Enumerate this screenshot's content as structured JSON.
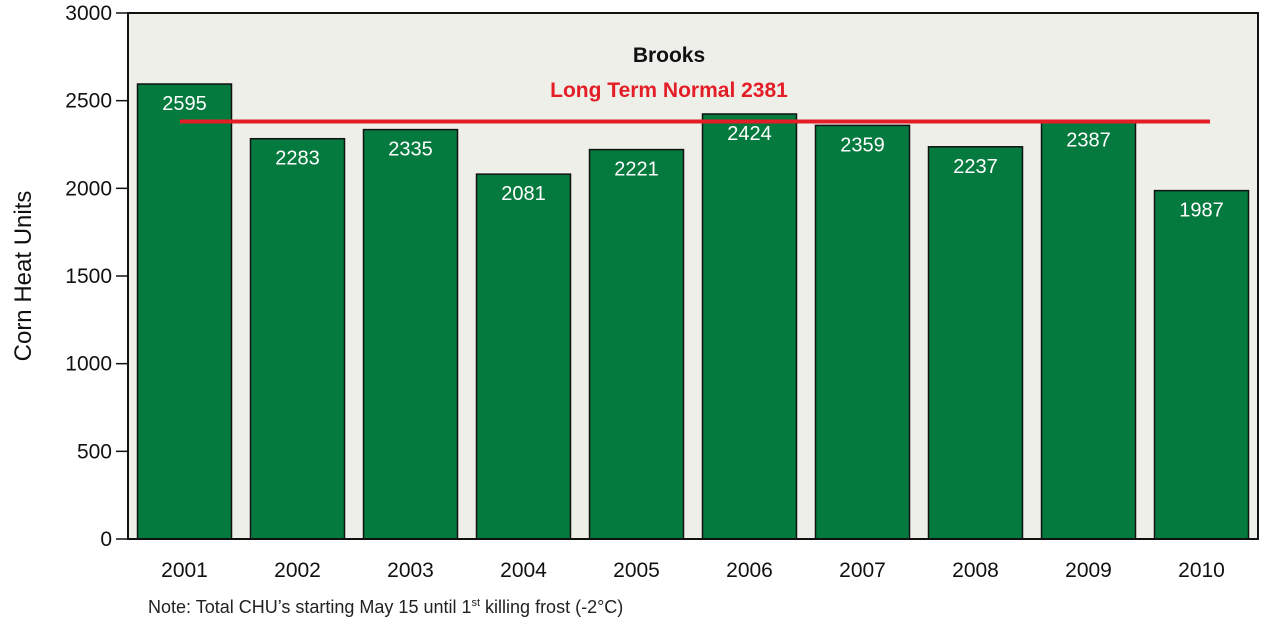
{
  "chart_data": {
    "type": "bar",
    "title": "Brooks",
    "ylabel": "Corn Heat Units",
    "xlabel": "",
    "categories": [
      "2001",
      "2002",
      "2003",
      "2004",
      "2005",
      "2006",
      "2007",
      "2008",
      "2009",
      "2010"
    ],
    "values": [
      2595,
      2283,
      2335,
      2081,
      2221,
      2424,
      2359,
      2237,
      2387,
      1987
    ],
    "data_labels": [
      "2595",
      "2283",
      "2335",
      "2081",
      "2221",
      "2424",
      "2359",
      "2237",
      "2387",
      "1987"
    ],
    "ylim": [
      0,
      3000
    ],
    "yticks": [
      0,
      500,
      1000,
      1500,
      2000,
      2500,
      3000
    ],
    "bar_color": "#047a3e",
    "plot_background": "#efefea",
    "reference_line": {
      "label": "Long Term Normal 2381",
      "value": 2381,
      "color": "#e31e26"
    },
    "grid": false,
    "legend": "none"
  },
  "note": {
    "before": "Note: Total CHU’s starting May 15 until 1",
    "sup": "st",
    "after": " killing frost (-2°C)"
  }
}
